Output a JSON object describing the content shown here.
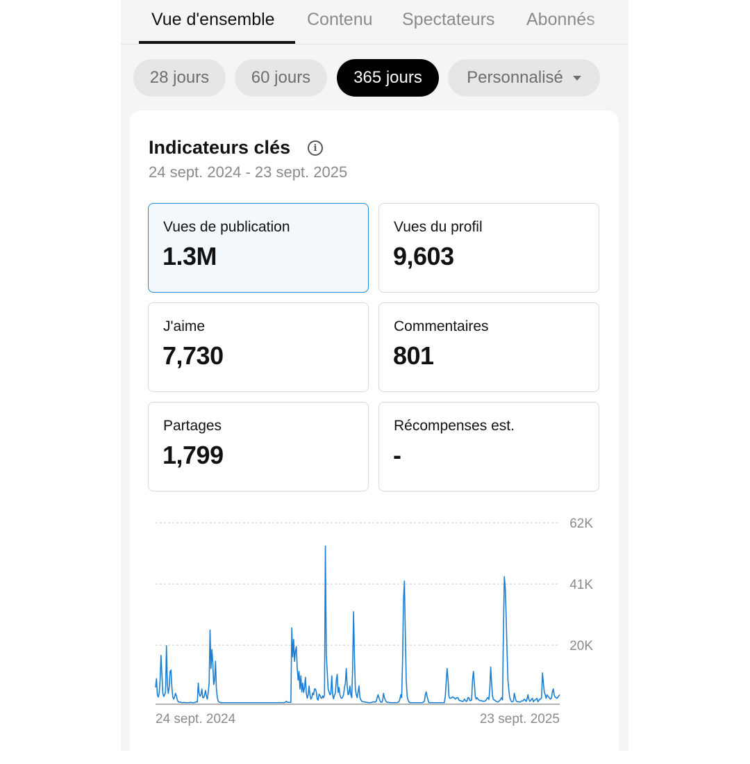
{
  "tabs": [
    {
      "label": "Vue d'ensemble",
      "active": true
    },
    {
      "label": "Contenu",
      "active": false
    },
    {
      "label": "Spectateurs",
      "active": false
    },
    {
      "label": "Abonnés",
      "active": false
    }
  ],
  "periods": [
    {
      "label": "28 jours",
      "active": false
    },
    {
      "label": "60 jours",
      "active": false
    },
    {
      "label": "365 jours",
      "active": true
    },
    {
      "label": "Personnalisé",
      "active": false,
      "dropdown": true
    }
  ],
  "card": {
    "title": "Indicateurs clés",
    "info_icon": "info-icon",
    "date_range": "24 sept. 2024 - 23 sept. 2025"
  },
  "metrics": [
    {
      "label": "Vues de publication",
      "value": "1.3M",
      "selected": true
    },
    {
      "label": "Vues du profil",
      "value": "9,603",
      "selected": false
    },
    {
      "label": "J'aime",
      "value": "7,730",
      "selected": false
    },
    {
      "label": "Commentaires",
      "value": "801",
      "selected": false
    },
    {
      "label": "Partages",
      "value": "1,799",
      "selected": false
    },
    {
      "label": "Récompenses est.",
      "value": "-",
      "selected": false
    }
  ],
  "colors": {
    "accent": "#1f8ad6",
    "selected_card_bg": "#f2f8fc",
    "line": "#1a7fd4",
    "active_pill": "#000000"
  },
  "chart_data": {
    "type": "line",
    "x_range": [
      "24 sept. 2024",
      "23 sept. 2025"
    ],
    "x_tick_labels": [
      "24 sept. 2024",
      "23 sept. 2025"
    ],
    "y_tick_labels": [
      "20K",
      "41K",
      "62K"
    ],
    "y_ticks": [
      20000,
      41000,
      62000
    ],
    "ylim": [
      0,
      62000
    ],
    "grid": true,
    "y_axis_position": "right",
    "series": [
      {
        "values": [
          5500,
          8500,
          3000,
          2200,
          3500,
          8000,
          16500,
          10000,
          3500,
          2400,
          3000,
          4000,
          19800,
          6500,
          3500,
          5500,
          11000,
          11500,
          5500,
          2200,
          1500,
          2300,
          3500,
          2600,
          1200,
          600,
          500,
          500,
          400,
          300,
          300,
          400,
          300,
          300,
          300,
          300,
          300,
          300,
          400,
          400,
          300,
          300,
          300,
          300,
          500,
          600,
          500,
          7000,
          3500,
          2500,
          3000,
          5000,
          2000,
          2000,
          3000,
          4500,
          2500,
          1500,
          3800,
          7000,
          25200,
          12000,
          18500,
          14000,
          6500,
          8000,
          14500,
          5000,
          2000,
          800,
          500,
          400,
          300,
          300,
          300,
          300,
          300,
          300,
          300,
          300,
          300,
          300,
          300,
          300,
          300,
          300,
          300,
          300,
          300,
          300,
          300,
          300,
          300,
          300,
          300,
          300,
          300,
          300,
          300,
          300,
          300,
          300,
          300,
          300,
          300,
          300,
          300,
          300,
          300,
          300,
          300,
          300,
          300,
          300,
          300,
          300,
          300,
          300,
          300,
          300,
          300,
          300,
          300,
          300,
          300,
          300,
          300,
          300,
          300,
          300,
          300,
          300,
          300,
          300,
          300,
          300,
          300,
          300,
          300,
          300,
          300,
          300,
          300,
          500,
          800,
          500,
          400,
          400,
          400,
          400,
          26000,
          16000,
          22000,
          14500,
          18000,
          19500,
          12000,
          8000,
          11000,
          5000,
          9500,
          4000,
          7000,
          3800,
          5500,
          9000,
          3500,
          1800,
          3000,
          6000,
          3000,
          1500,
          2000,
          3600,
          3000,
          5000,
          5000,
          4000,
          1500,
          1200,
          3200,
          2800,
          2000,
          1800,
          2600,
          2000,
          3000,
          54000,
          17000,
          11000,
          5000,
          4000,
          3000,
          3500,
          9500,
          3000,
          1600,
          3000,
          3500,
          8000,
          10000,
          3800,
          5500,
          3000,
          2000,
          1800,
          2200,
          3000,
          5500,
          7000,
          12000,
          6000,
          3000,
          3500,
          6000,
          3000,
          2000,
          12000,
          31500,
          16000,
          5000,
          3000,
          2000,
          4000,
          6000,
          2000,
          1300,
          800,
          600,
          600,
          500,
          500,
          400,
          400,
          300,
          300,
          300,
          300,
          400,
          500,
          600,
          500,
          500,
          800,
          2000,
          3000,
          2000,
          1000,
          500,
          400,
          1000,
          3500,
          2000,
          1200,
          600,
          400,
          400,
          400,
          300,
          300,
          300,
          300,
          300,
          300,
          300,
          300,
          300,
          500,
          600,
          1500,
          3000,
          2000,
          15000,
          36000,
          42000,
          24000,
          8000,
          2500,
          1200,
          600,
          300,
          300,
          300,
          300,
          300,
          300,
          300,
          300,
          300,
          300,
          300,
          300,
          300,
          300,
          300,
          500,
          800,
          3000,
          4000,
          2500,
          1200,
          300,
          300,
          300,
          300,
          300,
          300,
          300,
          300,
          300,
          300,
          300,
          300,
          300,
          300,
          300,
          300,
          300,
          300,
          2500,
          7500,
          12000,
          8500,
          2500,
          1800,
          1800,
          2000,
          2300,
          2000,
          2000,
          1500,
          1800,
          2000,
          2000,
          1200,
          1000,
          1000,
          800,
          700,
          800,
          1500,
          1200,
          700,
          900,
          2000,
          2000,
          1000,
          1000,
          1200,
          8000,
          11000,
          7000,
          2500,
          1500,
          2000,
          1500,
          1200,
          1000,
          1000,
          1000,
          800,
          800,
          800,
          900,
          1200,
          1800,
          2000,
          1400,
          5000,
          12500,
          7000,
          2500,
          1400,
          1200,
          1000,
          800,
          600,
          500,
          800,
          1000,
          1500,
          2000,
          1200,
          24000,
          43500,
          40000,
          30000,
          18000,
          8000,
          4500,
          2000,
          1200,
          600,
          600,
          900,
          3500,
          2000,
          900,
          600,
          600,
          600,
          500,
          600,
          900,
          900,
          1000,
          1500,
          1200,
          700,
          1500,
          3000,
          1500,
          800,
          1000,
          1500,
          1800,
          600,
          1000,
          1300,
          1500,
          1800,
          600,
          1000,
          1500,
          1500,
          2000,
          10500,
          7000,
          4000,
          3000,
          1800,
          3000,
          2500,
          2200,
          1700,
          1500,
          2000,
          4200,
          5000,
          2800,
          2200,
          2000,
          1800,
          2200,
          2600,
          3000
        ]
      }
    ]
  }
}
